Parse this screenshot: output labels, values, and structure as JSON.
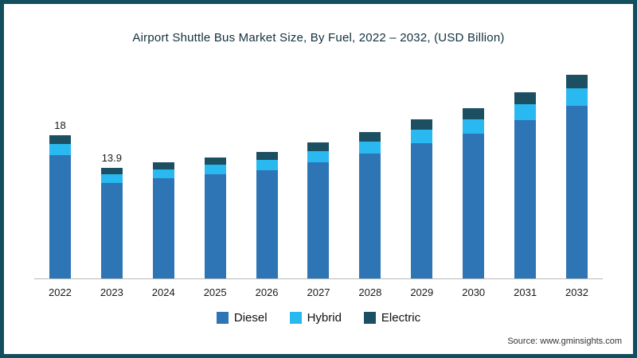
{
  "title": "Airport Shuttle Bus Market Size, By Fuel, 2022 – 2032, (USD Billion)",
  "source": "Source: www.gminsights.com",
  "chart_data": {
    "type": "bar",
    "stacked": true,
    "title": "Airport Shuttle Bus Market Size, By Fuel, 2022 – 2032, (USD Billion)",
    "xlabel": "",
    "ylabel": "USD Billion",
    "ylim": [
      0,
      27
    ],
    "grid": false,
    "legend_position": "bottom",
    "categories": [
      "2022",
      "2023",
      "2024",
      "2025",
      "2026",
      "2027",
      "2028",
      "2029",
      "2030",
      "2031",
      "2032"
    ],
    "series": [
      {
        "name": "Diesel",
        "color": "#2e75b6",
        "values": [
          15.5,
          12.0,
          12.6,
          13.1,
          13.6,
          14.6,
          15.7,
          17.0,
          18.2,
          19.9,
          21.7
        ]
      },
      {
        "name": "Hybrid",
        "color": "#29b9f0",
        "values": [
          1.4,
          1.1,
          1.1,
          1.2,
          1.3,
          1.4,
          1.5,
          1.7,
          1.8,
          2.0,
          2.2
        ]
      },
      {
        "name": "Electric",
        "color": "#1d4f63",
        "values": [
          1.1,
          0.8,
          0.9,
          0.9,
          1.0,
          1.1,
          1.2,
          1.3,
          1.4,
          1.5,
          1.7
        ]
      }
    ],
    "totals": [
      18.0,
      13.9,
      14.6,
      15.2,
      15.9,
      17.1,
      18.4,
      20.0,
      21.4,
      23.4,
      25.6
    ],
    "annotations": {
      "2022": "18",
      "2023": "13.9"
    }
  },
  "legend": [
    {
      "label": "Diesel",
      "color": "#2e75b6"
    },
    {
      "label": "Hybrid",
      "color": "#29b9f0"
    },
    {
      "label": "Electric",
      "color": "#1d4f63"
    }
  ]
}
